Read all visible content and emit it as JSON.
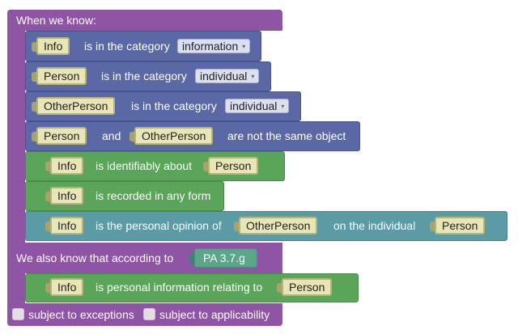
{
  "header": {
    "when_we_know": "When we know:"
  },
  "conditions": [
    {
      "a": "Info",
      "text": "is in the category",
      "dropdown": "information"
    },
    {
      "a": "Person",
      "text": "is in the category",
      "dropdown": "individual"
    },
    {
      "a": "OtherPerson",
      "text": "is in the category",
      "dropdown": "individual"
    },
    {
      "a": "Person",
      "text": "and",
      "b": "OtherPerson",
      "text2": "are not the same object"
    },
    {
      "a": "Info",
      "text": "is identifiably about",
      "b": "Person"
    },
    {
      "a": "Info",
      "text": "is recorded in any form"
    },
    {
      "a": "Info",
      "text": "is the personal opinion of",
      "b": "OtherPerson",
      "text2": "on the individual",
      "c": "Person"
    }
  ],
  "according": {
    "label": "We also know that according to",
    "ref": "PA 3.7.g"
  },
  "conclusion": {
    "a": "Info",
    "text": "is personal information relating to",
    "b": "Person"
  },
  "footer": {
    "exceptions": "subject to exceptions",
    "applicability": "subject to applicability"
  },
  "dropdown_arrow": "▾",
  "colors": {
    "rule": "#8e55a5",
    "category": "#5a68a6",
    "relation": "#5ba55b",
    "opinion": "#5b9ba5",
    "reference": "#5ba58a",
    "variable": "#e8e6b8"
  }
}
